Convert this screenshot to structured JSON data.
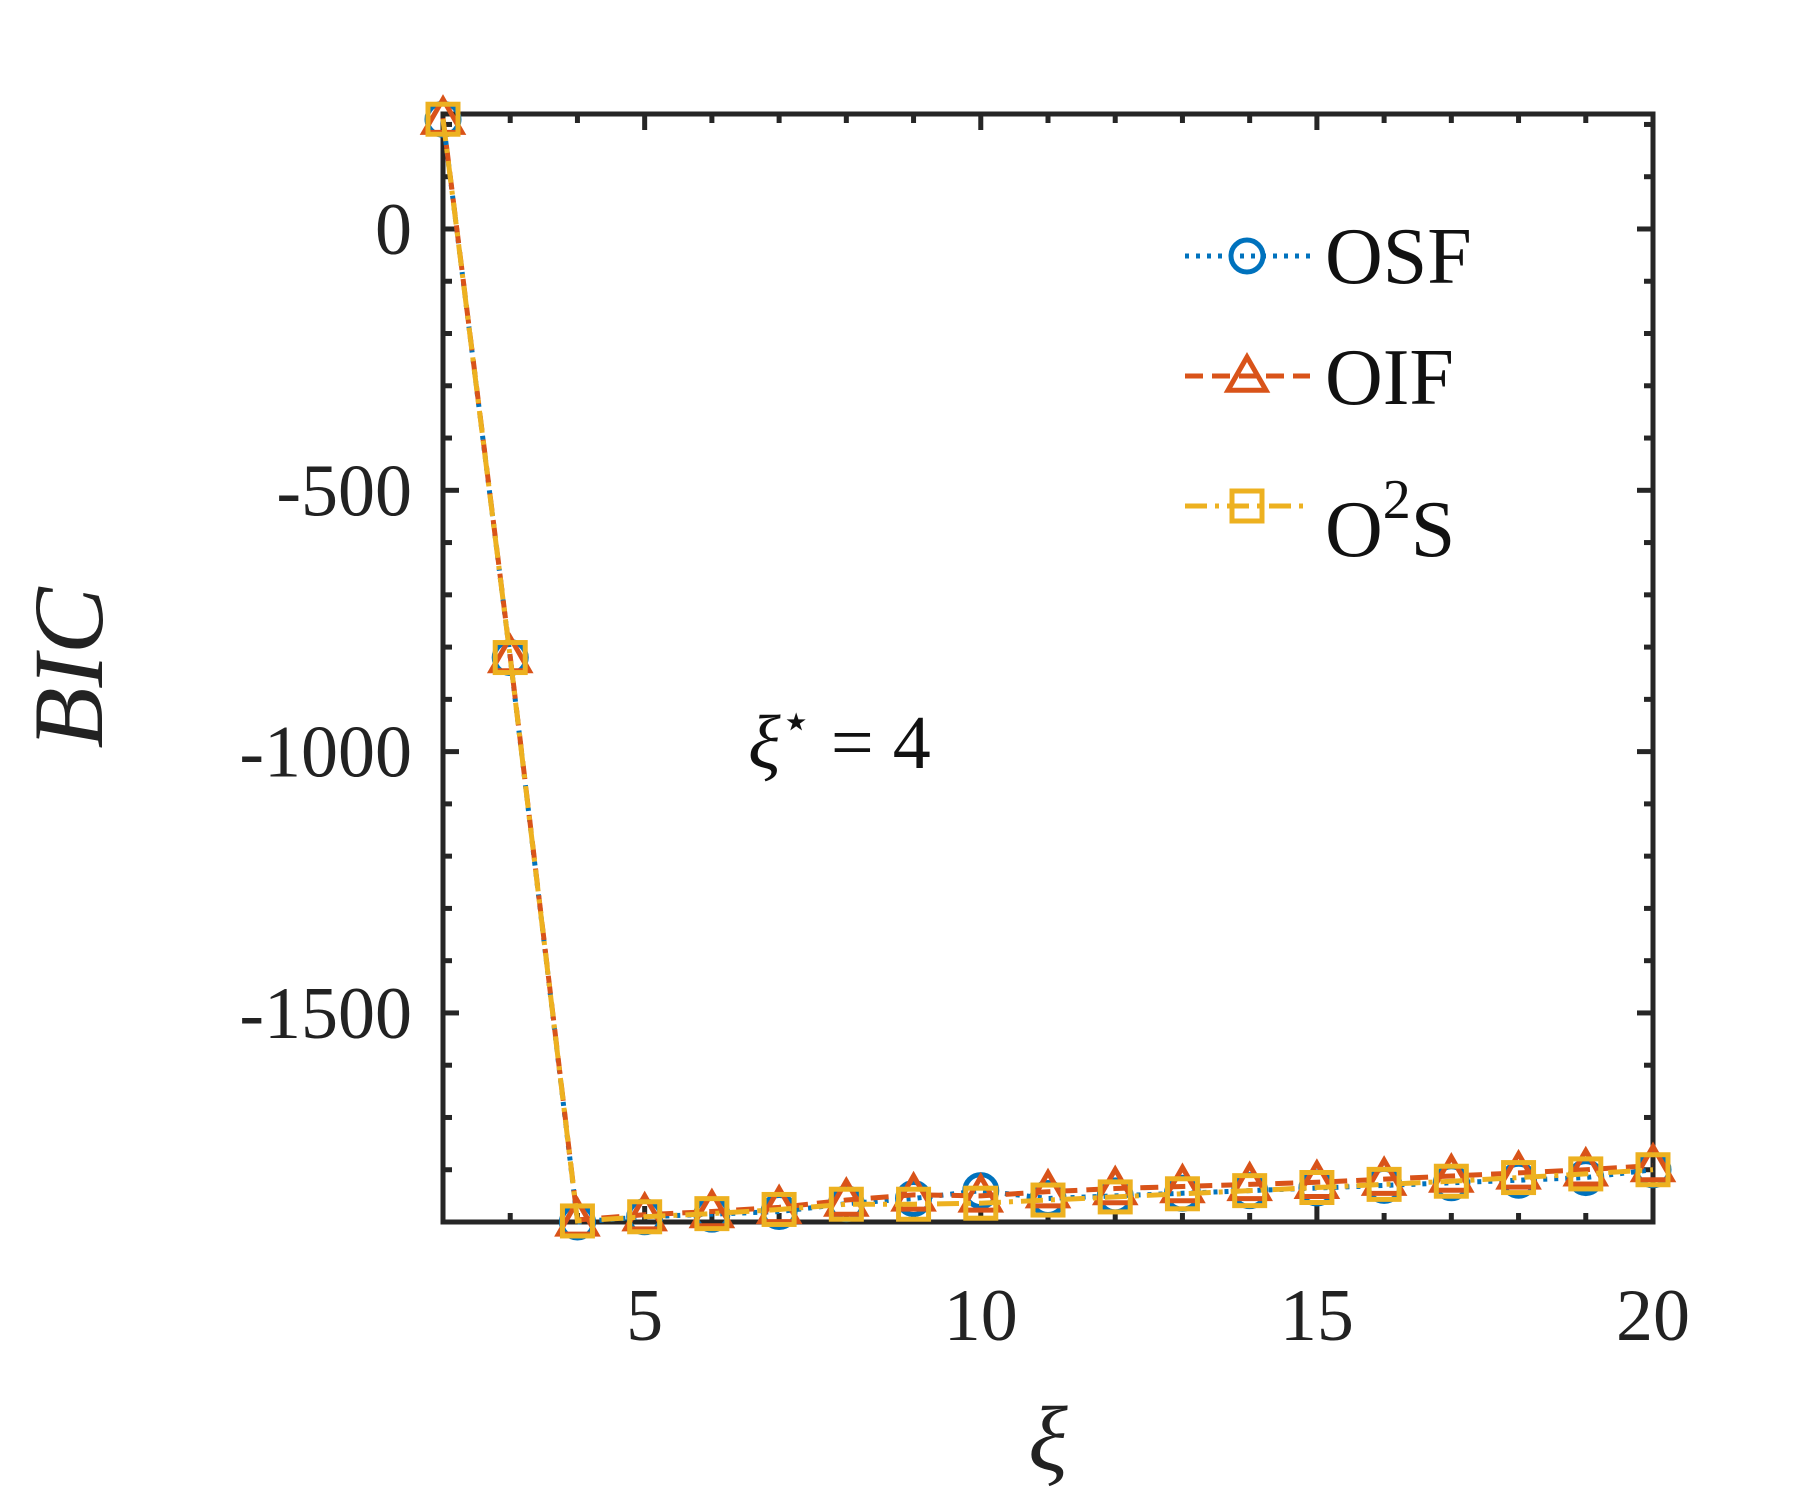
{
  "chart_data": {
    "type": "line",
    "xlabel": "ξ",
    "ylabel": "BIC",
    "xlim": [
      2,
      20
    ],
    "ylim": [
      -1900,
      220
    ],
    "x_ticks": [
      5,
      10,
      15,
      20
    ],
    "x_tick_labels": [
      "5",
      "10",
      "15",
      "20"
    ],
    "y_ticks": [
      0,
      -500,
      -1000,
      -1500
    ],
    "y_tick_labels": [
      "0",
      "-500",
      "-1000",
      "-1500"
    ],
    "grid": false,
    "legend_position": "top-right",
    "annotation": {
      "base": "ξ",
      "sup": "⋆",
      "rest": " = 4"
    },
    "x": [
      2,
      3,
      4,
      5,
      6,
      7,
      8,
      9,
      10,
      11,
      12,
      13,
      14,
      15,
      16,
      17,
      18,
      19,
      20
    ],
    "series": [
      {
        "name": "OSF",
        "color": "#0072BD",
        "marker": "circle",
        "line": "dotted",
        "values": [
          210,
          -820,
          -1900,
          -1890,
          -1885,
          -1880,
          -1865,
          -1855,
          -1840,
          -1855,
          -1850,
          -1845,
          -1840,
          -1835,
          -1830,
          -1825,
          -1820,
          -1815,
          -1800
        ]
      },
      {
        "name": "OIF",
        "color": "#D95319",
        "marker": "triangle",
        "line": "dashed",
        "values": [
          212,
          -818,
          -1896,
          -1886,
          -1880,
          -1872,
          -1858,
          -1848,
          -1850,
          -1842,
          -1836,
          -1832,
          -1828,
          -1824,
          -1818,
          -1812,
          -1806,
          -1800,
          -1792
        ]
      },
      {
        "name_base": "O",
        "name_sup": "2",
        "name_rest": "S",
        "color": "#EDB120",
        "marker": "square",
        "line": "dashdot",
        "values": [
          210,
          -820,
          -1898,
          -1890,
          -1884,
          -1876,
          -1866,
          -1866,
          -1864,
          -1858,
          -1852,
          -1846,
          -1840,
          -1834,
          -1828,
          -1822,
          -1815,
          -1808,
          -1800
        ]
      }
    ]
  }
}
